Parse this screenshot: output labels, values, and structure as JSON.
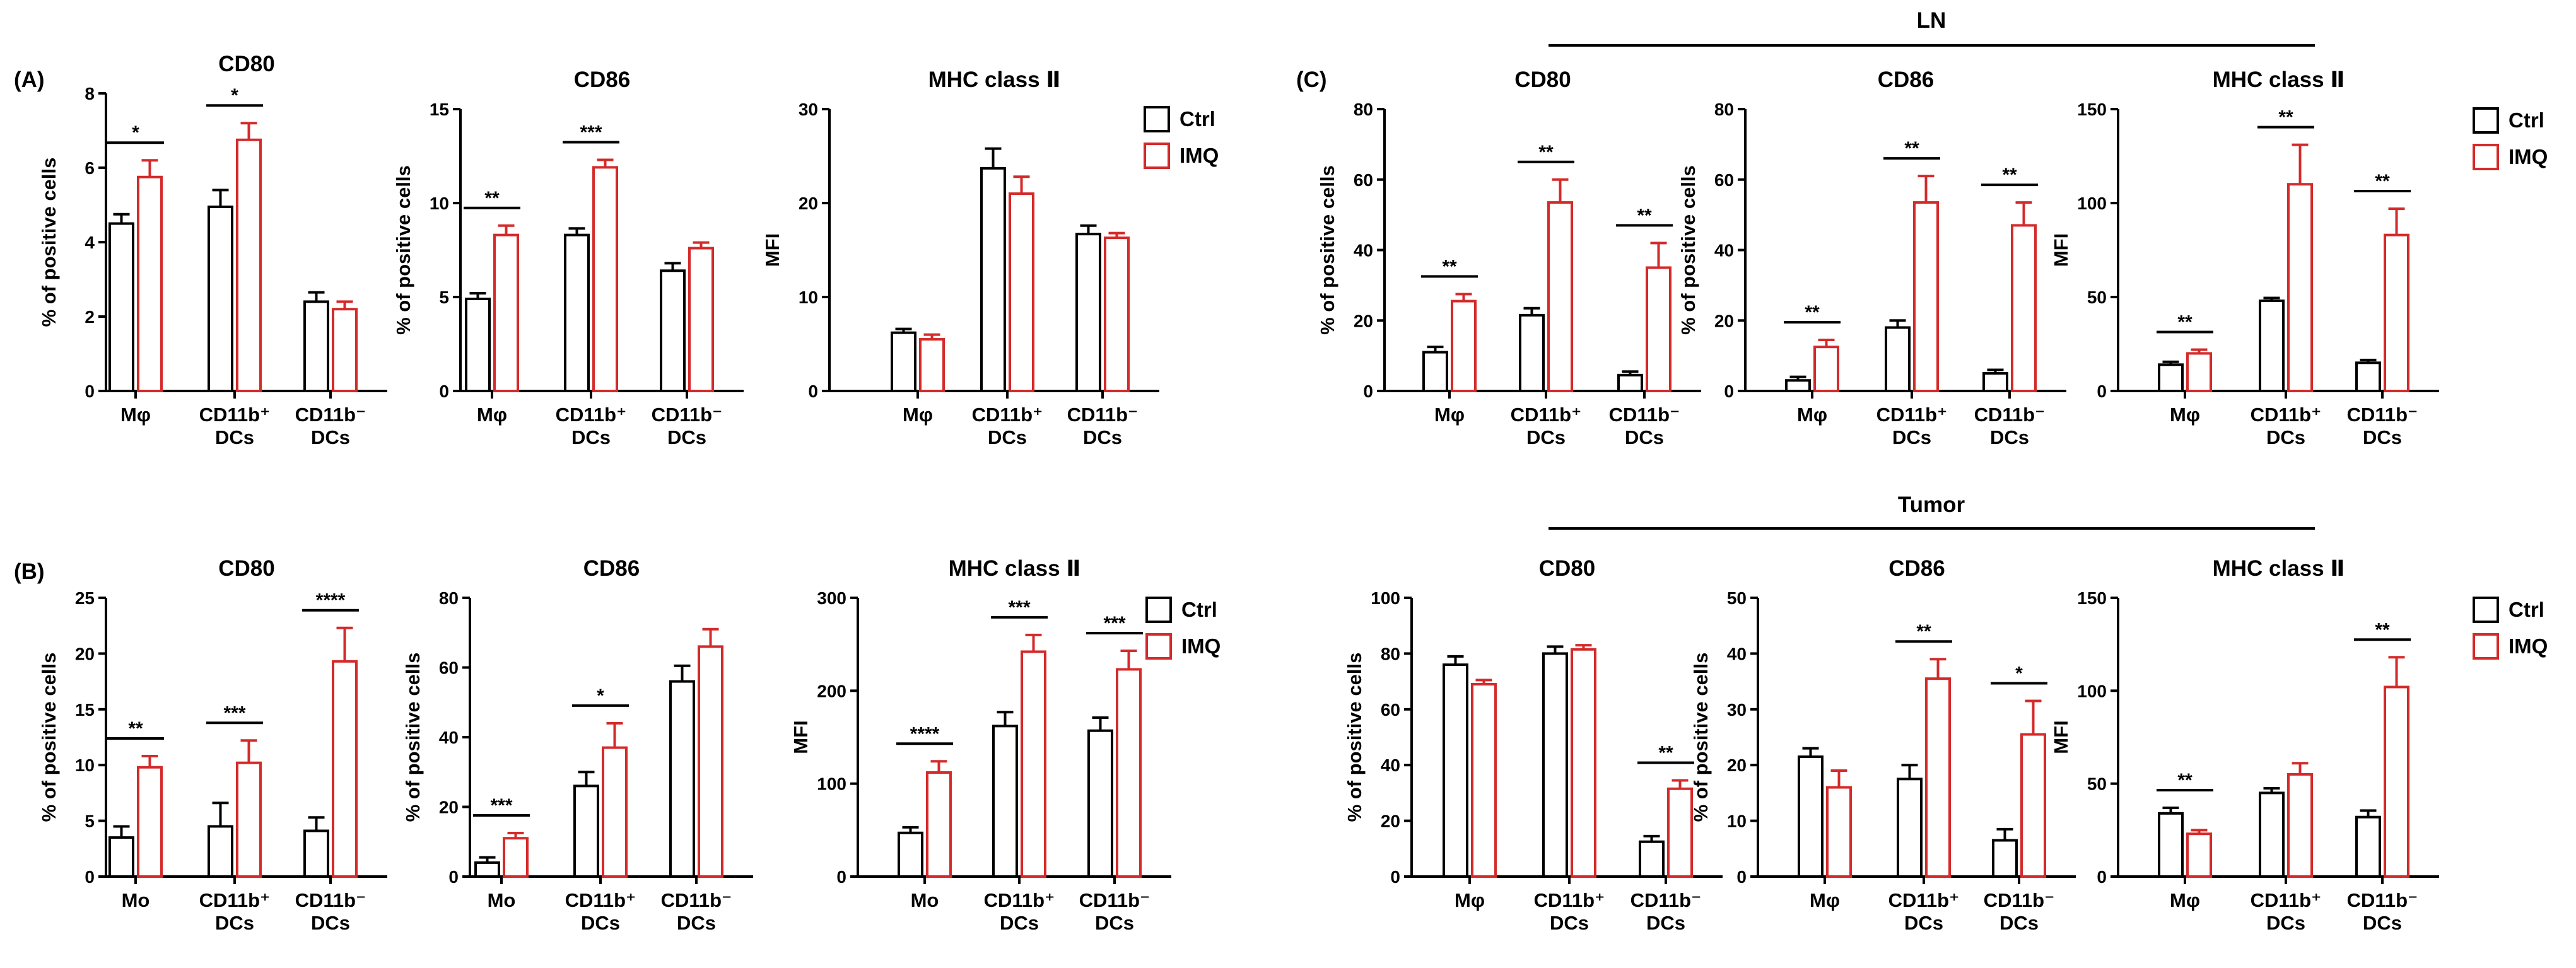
{
  "colors": {
    "ctrl": "#000000",
    "imq": "#d42a2a"
  },
  "group_labels": {
    "ln": "LN",
    "tumor": "Tumor"
  },
  "panel_labels": [
    "(A)",
    "(B)",
    "(C)"
  ],
  "legend": {
    "ctrl": "Ctrl",
    "imq": "IMQ"
  },
  "chart_data": [
    {
      "type": "bar",
      "title": "CD80",
      "ylabel": "% of positive cells",
      "ylim": [
        0,
        8
      ],
      "yticks": [
        "0",
        "2",
        "4",
        "6",
        "8"
      ],
      "categories": [
        [
          "Mφ"
        ],
        [
          "CD11b⁺",
          "DCs"
        ],
        [
          "CD11b⁻",
          "DCs"
        ]
      ],
      "series": [
        {
          "name": "Ctrl",
          "values": [
            4.5,
            4.95,
            2.4
          ],
          "errors": [
            0.25,
            0.45,
            0.25
          ]
        },
        {
          "name": "IMQ",
          "values": [
            5.75,
            6.75,
            2.2
          ],
          "errors": [
            0.45,
            0.45,
            0.2
          ]
        }
      ],
      "significance": [
        "*",
        "*",
        ""
      ]
    },
    {
      "type": "bar",
      "title": "CD86",
      "ylabel": "% of positive cells",
      "ylim": [
        0,
        15
      ],
      "yticks": [
        "0",
        "5",
        "10",
        "15"
      ],
      "categories": [
        [
          "Mφ"
        ],
        [
          "CD11b⁺",
          "DCs"
        ],
        [
          "CD11b⁻",
          "DCs"
        ]
      ],
      "series": [
        {
          "name": "Ctrl",
          "values": [
            4.9,
            8.3,
            6.4
          ],
          "errors": [
            0.3,
            0.35,
            0.4
          ]
        },
        {
          "name": "IMQ",
          "values": [
            8.3,
            11.9,
            7.6
          ],
          "errors": [
            0.5,
            0.4,
            0.3
          ]
        }
      ],
      "significance": [
        "**",
        "***",
        ""
      ]
    },
    {
      "type": "bar",
      "title": "MHC class Ⅱ",
      "ylabel": "MFI",
      "ylim": [
        0,
        30
      ],
      "yticks": [
        "0",
        "10",
        "20",
        "30"
      ],
      "categories": [
        [
          "Mφ"
        ],
        [
          "CD11b⁺",
          "DCs"
        ],
        [
          "CD11b⁻",
          "DCs"
        ]
      ],
      "series": [
        {
          "name": "Ctrl",
          "values": [
            6.2,
            23.7,
            16.7
          ],
          "errors": [
            0.4,
            2.1,
            0.9
          ]
        },
        {
          "name": "IMQ",
          "values": [
            5.5,
            21.0,
            16.3
          ],
          "errors": [
            0.5,
            1.8,
            0.5
          ]
        }
      ],
      "significance": [
        "",
        "",
        ""
      ]
    },
    {
      "type": "bar",
      "title": "CD80",
      "ylabel": "% of positive cells",
      "ylim": [
        0,
        80
      ],
      "yticks": [
        "0",
        "20",
        "40",
        "60",
        "80"
      ],
      "categories": [
        [
          "Mφ"
        ],
        [
          "CD11b⁺",
          "DCs"
        ],
        [
          "CD11b⁻",
          "DCs"
        ]
      ],
      "series": [
        {
          "name": "Ctrl",
          "values": [
            11,
            21.5,
            4.5
          ],
          "errors": [
            1.5,
            2.0,
            1.0
          ]
        },
        {
          "name": "IMQ",
          "values": [
            25.5,
            53.5,
            35
          ],
          "errors": [
            2.0,
            6.5,
            7.0
          ]
        }
      ],
      "significance": [
        "**",
        "**",
        "**"
      ]
    },
    {
      "type": "bar",
      "title": "CD86",
      "ylabel": "% of positive cells",
      "ylim": [
        0,
        80
      ],
      "yticks": [
        "0",
        "20",
        "40",
        "60",
        "80"
      ],
      "categories": [
        [
          "Mφ"
        ],
        [
          "CD11b⁺",
          "DCs"
        ],
        [
          "CD11b⁻",
          "DCs"
        ]
      ],
      "series": [
        {
          "name": "Ctrl",
          "values": [
            3,
            18,
            5
          ],
          "errors": [
            1.0,
            2.0,
            1.0
          ]
        },
        {
          "name": "IMQ",
          "values": [
            12.5,
            53.5,
            47
          ],
          "errors": [
            2.0,
            7.5,
            6.5
          ]
        }
      ],
      "significance": [
        "**",
        "**",
        "**"
      ]
    },
    {
      "type": "bar",
      "title": "MHC class Ⅱ",
      "ylabel": "MFI",
      "ylim": [
        0,
        150
      ],
      "yticks": [
        "0",
        "50",
        "100",
        "150"
      ],
      "categories": [
        [
          "Mφ"
        ],
        [
          "CD11b⁺",
          "DCs"
        ],
        [
          "CD11b⁻",
          "DCs"
        ]
      ],
      "series": [
        {
          "name": "Ctrl",
          "values": [
            14,
            48,
            15
          ],
          "errors": [
            1.5,
            1.5,
            1.5
          ]
        },
        {
          "name": "IMQ",
          "values": [
            20,
            110,
            83
          ],
          "errors": [
            2.0,
            21,
            14
          ]
        }
      ],
      "significance": [
        "**",
        "**",
        "**"
      ]
    },
    {
      "type": "bar",
      "title": "CD80",
      "ylabel": "% of positive cells",
      "ylim": [
        0,
        25
      ],
      "yticks": [
        "0",
        "5",
        "10",
        "15",
        "20",
        "25"
      ],
      "categories": [
        [
          "Mo"
        ],
        [
          "CD11b⁺",
          "DCs"
        ],
        [
          "CD11b⁻",
          "DCs"
        ]
      ],
      "series": [
        {
          "name": "Ctrl",
          "values": [
            3.5,
            4.5,
            4.1
          ],
          "errors": [
            1.0,
            2.1,
            1.2
          ]
        },
        {
          "name": "IMQ",
          "values": [
            9.8,
            10.2,
            19.3
          ],
          "errors": [
            1.0,
            2.0,
            3.0
          ]
        }
      ],
      "significance": [
        "**",
        "***",
        "****"
      ]
    },
    {
      "type": "bar",
      "title": "CD86",
      "ylabel": "% of positive cells",
      "ylim": [
        0,
        80
      ],
      "yticks": [
        "0",
        "20",
        "40",
        "60",
        "80"
      ],
      "categories": [
        [
          "Mo"
        ],
        [
          "CD11b⁺",
          "DCs"
        ],
        [
          "CD11b⁻",
          "DCs"
        ]
      ],
      "series": [
        {
          "name": "Ctrl",
          "values": [
            4,
            26,
            56
          ],
          "errors": [
            1.5,
            4.0,
            4.5
          ]
        },
        {
          "name": "IMQ",
          "values": [
            11,
            37,
            66
          ],
          "errors": [
            1.5,
            7.0,
            5.0
          ]
        }
      ],
      "significance": [
        "***",
        "*",
        ""
      ]
    },
    {
      "type": "bar",
      "title": "MHC class Ⅱ",
      "ylabel": "MFI",
      "ylim": [
        0,
        300
      ],
      "yticks": [
        "0",
        "100",
        "200",
        "300"
      ],
      "categories": [
        [
          "Mo"
        ],
        [
          "CD11b⁺",
          "DCs"
        ],
        [
          "CD11b⁻",
          "DCs"
        ]
      ],
      "series": [
        {
          "name": "Ctrl",
          "values": [
            47,
            162,
            157
          ],
          "errors": [
            6,
            15,
            14
          ]
        },
        {
          "name": "IMQ",
          "values": [
            112,
            242,
            223
          ],
          "errors": [
            12,
            18,
            20
          ]
        }
      ],
      "significance": [
        "****",
        "***",
        "***"
      ]
    },
    {
      "type": "bar",
      "title": "CD80",
      "ylabel": "% of positive cells",
      "ylim": [
        0,
        100
      ],
      "yticks": [
        "0",
        "20",
        "40",
        "60",
        "80",
        "100"
      ],
      "categories": [
        [
          "Mφ"
        ],
        [
          "CD11b⁺",
          "DCs"
        ],
        [
          "CD11b⁻",
          "DCs"
        ]
      ],
      "series": [
        {
          "name": "Ctrl",
          "values": [
            76,
            80,
            12.5
          ],
          "errors": [
            3.0,
            2.5,
            2.0
          ]
        },
        {
          "name": "IMQ",
          "values": [
            69,
            81.5,
            31.5
          ],
          "errors": [
            1.5,
            1.5,
            3.0
          ]
        }
      ],
      "significance": [
        "",
        "",
        "**"
      ]
    },
    {
      "type": "bar",
      "title": "CD86",
      "ylabel": "% of positive cells",
      "ylim": [
        0,
        50
      ],
      "yticks": [
        "0",
        "10",
        "20",
        "30",
        "40",
        "50"
      ],
      "categories": [
        [
          "Mφ"
        ],
        [
          "CD11b⁺",
          "DCs"
        ],
        [
          "CD11b⁻",
          "DCs"
        ]
      ],
      "series": [
        {
          "name": "Ctrl",
          "values": [
            21.5,
            17.5,
            6.5
          ],
          "errors": [
            1.5,
            2.5,
            2.0
          ]
        },
        {
          "name": "IMQ",
          "values": [
            16,
            35.5,
            25.5
          ],
          "errors": [
            3.0,
            3.5,
            6.0
          ]
        }
      ],
      "significance": [
        "",
        "**",
        "*"
      ]
    },
    {
      "type": "bar",
      "title": "MHC class Ⅱ",
      "ylabel": "MFI",
      "ylim": [
        0,
        150
      ],
      "yticks": [
        "0",
        "50",
        "100",
        "150"
      ],
      "categories": [
        [
          "Mφ"
        ],
        [
          "CD11b⁺",
          "DCs"
        ],
        [
          "CD11b⁻",
          "DCs"
        ]
      ],
      "series": [
        {
          "name": "Ctrl",
          "values": [
            34,
            45,
            32
          ],
          "errors": [
            3.0,
            2.5,
            3.5
          ]
        },
        {
          "name": "IMQ",
          "values": [
            23,
            55,
            102
          ],
          "errors": [
            2.0,
            6.0,
            16
          ]
        }
      ],
      "significance": [
        "**",
        "",
        "**"
      ]
    }
  ]
}
